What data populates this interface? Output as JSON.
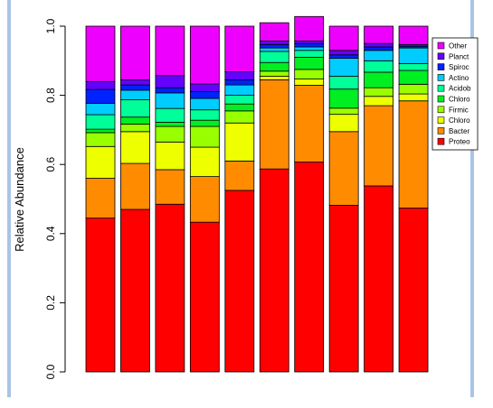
{
  "chart_data": {
    "type": "bar",
    "stacked": true,
    "title": "",
    "xlabel": "",
    "ylabel": "Relative Abundance",
    "ylim": [
      0,
      1.0
    ],
    "yticks": [
      "0.0",
      "0.2",
      "0.4",
      "0.6",
      "0.8",
      "1.0"
    ],
    "grid": false,
    "legend_position": "top-right",
    "categories": [
      "",
      "",
      "",
      "",
      "",
      "",
      "",
      "",
      "",
      ""
    ],
    "series": [
      {
        "name": "Proteo",
        "color": "#ff0000",
        "values": [
          0.445,
          0.47,
          0.485,
          0.433,
          0.525,
          0.587,
          0.607,
          0.482,
          0.538,
          0.474
        ]
      },
      {
        "name": "Bacter",
        "color": "#ff8c00",
        "values": [
          0.115,
          0.133,
          0.1,
          0.132,
          0.085,
          0.258,
          0.222,
          0.213,
          0.232,
          0.31
        ]
      },
      {
        "name": "Chloro",
        "color": "#eeff00",
        "values": [
          0.092,
          0.092,
          0.08,
          0.085,
          0.11,
          0.01,
          0.018,
          0.05,
          0.027,
          0.02
        ]
      },
      {
        "name": "Firmic",
        "color": "#99ff00",
        "values": [
          0.04,
          0.022,
          0.045,
          0.06,
          0.035,
          0.015,
          0.028,
          0.018,
          0.025,
          0.028
        ]
      },
      {
        "name": "Chloro",
        "color": "#00ee22",
        "values": [
          0.01,
          0.02,
          0.012,
          0.018,
          0.02,
          0.025,
          0.035,
          0.055,
          0.045,
          0.04
        ]
      },
      {
        "name": "Acidob",
        "color": "#00ff99",
        "values": [
          0.042,
          0.05,
          0.04,
          0.03,
          0.025,
          0.032,
          0.02,
          0.037,
          0.033,
          0.02
        ]
      },
      {
        "name": "Actino",
        "color": "#00ccff",
        "values": [
          0.033,
          0.028,
          0.045,
          0.033,
          0.03,
          0.01,
          0.01,
          0.052,
          0.03,
          0.045
        ]
      },
      {
        "name": "Spiroc",
        "color": "#0022ff",
        "values": [
          0.04,
          0.015,
          0.015,
          0.02,
          0.015,
          0.01,
          0.01,
          0.01,
          0.01,
          0.005
        ]
      },
      {
        "name": "Planct",
        "color": "#6600ff",
        "values": [
          0.023,
          0.015,
          0.035,
          0.022,
          0.023,
          0.01,
          0.007,
          0.013,
          0.01,
          0.005
        ]
      },
      {
        "name": "Other",
        "color": "#ee00ff",
        "values": [
          0.16,
          0.155,
          0.143,
          0.167,
          0.132,
          0.053,
          0.071,
          0.07,
          0.05,
          0.053
        ]
      }
    ]
  }
}
